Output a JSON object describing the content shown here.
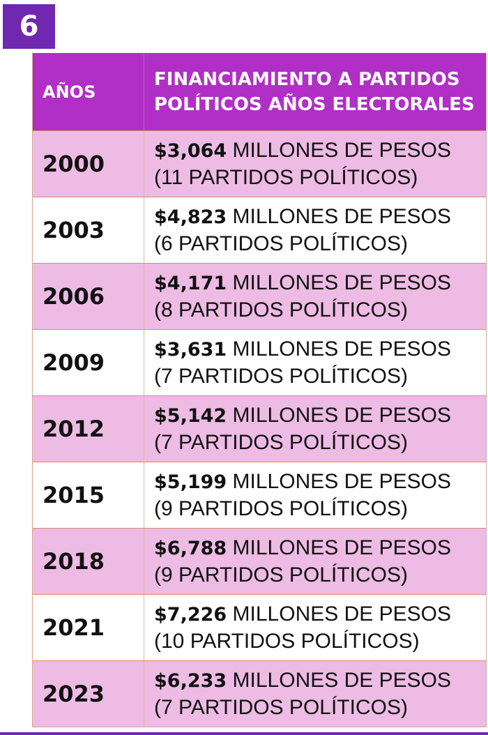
{
  "badge": {
    "number": "6"
  },
  "colors": {
    "badge": "#7028b0",
    "header": "#b12fc6",
    "row_pink": "#edbbe4",
    "row_white": "#ffffff"
  },
  "table": {
    "header": {
      "years_label": "AÑOS",
      "desc_line1": "FINANCIAMIENTO A PARTIDOS",
      "desc_line2": "POLÍTICOS AÑOS ELECTORALES"
    },
    "unit_text": "MILLONES DE PESOS",
    "rows": [
      {
        "year": "2000",
        "amount": "$3,064",
        "parties": "(11 PARTIDOS POLÍTICOS)"
      },
      {
        "year": "2003",
        "amount": "$4,823",
        "parties": "(6 PARTIDOS POLÍTICOS)"
      },
      {
        "year": "2006",
        "amount": "$4,171",
        "parties": "(8 PARTIDOS POLÍTICOS)"
      },
      {
        "year": "2009",
        "amount": "$3,631",
        "parties": "(7 PARTIDOS POLÍTICOS)"
      },
      {
        "year": "2012",
        "amount": "$5,142",
        "parties": "(7 PARTIDOS POLÍTICOS)"
      },
      {
        "year": "2015",
        "amount": "$5,199",
        "parties": "(9 PARTIDOS POLÍTICOS)"
      },
      {
        "year": "2018",
        "amount": "$6,788",
        "parties": "(9 PARTIDOS POLÍTICOS)"
      },
      {
        "year": "2021",
        "amount": "$7,226",
        "parties": "(10 PARTIDOS POLÍTICOS)"
      },
      {
        "year": "2023",
        "amount": "$6,233",
        "parties": "(7 PARTIDOS POLÍTICOS)"
      }
    ]
  }
}
